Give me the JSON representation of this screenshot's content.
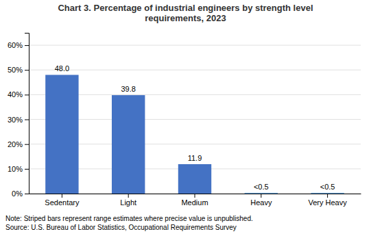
{
  "chart_data": {
    "type": "bar",
    "title": "Chart 3. Percentage of industrial engineers by strength level\nrequirements, 2023",
    "categories": [
      "Sedentary",
      "Light",
      "Medium",
      "Heavy",
      "Very Heavy"
    ],
    "values": [
      48.0,
      39.8,
      11.9,
      0.3,
      0.3
    ],
    "value_labels": [
      "48.0",
      "39.8",
      "11.9",
      "<0.5",
      "<0.5"
    ],
    "data_labels": true,
    "colors": [
      "#4472C4",
      "#4472C4",
      "#4472C4",
      "#5B9BD5",
      "#5B9BD5"
    ],
    "ylim": [
      0,
      65
    ],
    "yticks": [
      {
        "value": 0,
        "label": "0%"
      },
      {
        "value": 10,
        "label": "10%"
      },
      {
        "value": 20,
        "label": "20%"
      },
      {
        "value": 30,
        "label": "30%"
      },
      {
        "value": 40,
        "label": "40%"
      },
      {
        "value": 50,
        "label": "50%"
      },
      {
        "value": 60,
        "label": "60%"
      }
    ],
    "grid": true,
    "annotations": [
      "Note: Striped bars represent range estimates where precise value is unpublished.",
      "Source: U.S. Bureau of Labor Statistics, Occupational Requirements Survey"
    ]
  }
}
